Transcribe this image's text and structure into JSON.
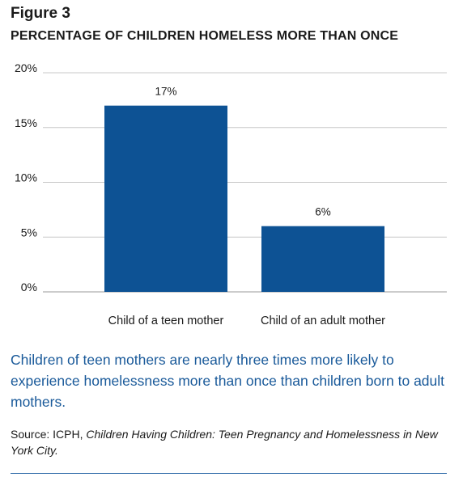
{
  "figure_label": "Figure 3",
  "caption": "Children of teen mothers are nearly three times more likely to experience homelessness more than once than children born to adult mothers.",
  "source": {
    "prefix": "Source: ICPH, ",
    "title": "Children Having Children: Teen Pregnancy and Homelessness in New York City."
  },
  "colors": {
    "bar": "#0d5294",
    "grid": "#c8c8c8",
    "caption": "#1a5a9a",
    "rule": "#2f6aa8"
  },
  "chart_data": {
    "type": "bar",
    "title": "PERCENTAGE OF CHILDREN HOMELESS MORE THAN ONCE",
    "categories": [
      "Child of a teen mother",
      "Child of an adult mother"
    ],
    "values": [
      17,
      6
    ],
    "data_labels": [
      "17%",
      "6%"
    ],
    "yticks": [
      0,
      5,
      10,
      15,
      20
    ],
    "ytick_labels": [
      "0%",
      "5%",
      "10%",
      "15%",
      "20%"
    ],
    "ylim": [
      0,
      20
    ],
    "xlabel": "",
    "ylabel": "",
    "grid": true,
    "legend": false
  }
}
